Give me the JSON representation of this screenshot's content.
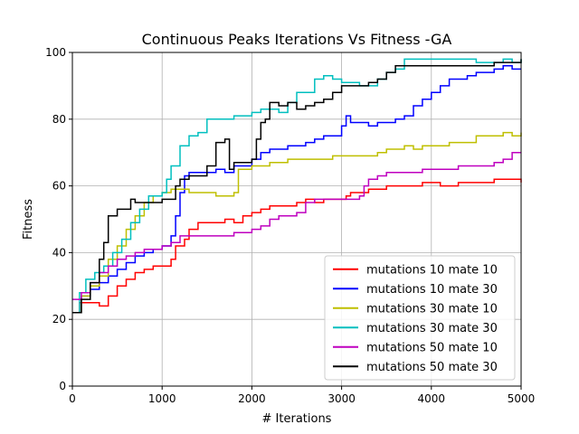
{
  "chart_data": {
    "type": "line",
    "title": "Continuous Peaks Iterations Vs Fitness -GA",
    "xlabel": "# Iterations",
    "ylabel": "Fitness",
    "xlim": [
      0,
      5000
    ],
    "ylim": [
      0,
      100
    ],
    "xticks": [
      0,
      1000,
      2000,
      3000,
      4000,
      5000
    ],
    "yticks": [
      0,
      20,
      40,
      60,
      80,
      100
    ],
    "grid": true,
    "legend_position": "bottom-right",
    "step": true,
    "series": [
      {
        "name": "mutations 10 mate 10",
        "color": "#ff0000",
        "points": [
          [
            0,
            22
          ],
          [
            80,
            25
          ],
          [
            200,
            25
          ],
          [
            300,
            24
          ],
          [
            400,
            27
          ],
          [
            500,
            30
          ],
          [
            600,
            32
          ],
          [
            700,
            34
          ],
          [
            800,
            35
          ],
          [
            900,
            36
          ],
          [
            1000,
            36
          ],
          [
            1100,
            38
          ],
          [
            1150,
            42
          ],
          [
            1250,
            44
          ],
          [
            1300,
            47
          ],
          [
            1400,
            49
          ],
          [
            1500,
            49
          ],
          [
            1600,
            49
          ],
          [
            1700,
            50
          ],
          [
            1800,
            49
          ],
          [
            1900,
            51
          ],
          [
            2000,
            52
          ],
          [
            2100,
            53
          ],
          [
            2200,
            54
          ],
          [
            2300,
            54
          ],
          [
            2400,
            54
          ],
          [
            2500,
            55
          ],
          [
            2600,
            56
          ],
          [
            2700,
            55
          ],
          [
            2800,
            56
          ],
          [
            2900,
            56
          ],
          [
            3000,
            56
          ],
          [
            3050,
            57
          ],
          [
            3100,
            58
          ],
          [
            3200,
            58
          ],
          [
            3300,
            59
          ],
          [
            3400,
            59
          ],
          [
            3500,
            60
          ],
          [
            3600,
            60
          ],
          [
            3700,
            60
          ],
          [
            3800,
            60
          ],
          [
            3900,
            61
          ],
          [
            4000,
            61
          ],
          [
            4100,
            60
          ],
          [
            4200,
            60
          ],
          [
            4300,
            61
          ],
          [
            4400,
            61
          ],
          [
            4500,
            61
          ],
          [
            4600,
            61
          ],
          [
            4700,
            62
          ],
          [
            4800,
            62
          ],
          [
            4900,
            62
          ],
          [
            5000,
            61
          ]
        ]
      },
      {
        "name": "mutations 10 mate 30",
        "color": "#0000ff",
        "points": [
          [
            0,
            22
          ],
          [
            100,
            27
          ],
          [
            200,
            29
          ],
          [
            300,
            31
          ],
          [
            400,
            33
          ],
          [
            500,
            35
          ],
          [
            600,
            37
          ],
          [
            700,
            39
          ],
          [
            800,
            40
          ],
          [
            900,
            41
          ],
          [
            1000,
            42
          ],
          [
            1100,
            45
          ],
          [
            1150,
            51
          ],
          [
            1200,
            58
          ],
          [
            1250,
            63
          ],
          [
            1300,
            64
          ],
          [
            1400,
            64
          ],
          [
            1500,
            64
          ],
          [
            1600,
            65
          ],
          [
            1700,
            64
          ],
          [
            1800,
            66
          ],
          [
            1900,
            66
          ],
          [
            2000,
            68
          ],
          [
            2100,
            70
          ],
          [
            2200,
            71
          ],
          [
            2300,
            71
          ],
          [
            2400,
            72
          ],
          [
            2500,
            72
          ],
          [
            2600,
            73
          ],
          [
            2700,
            74
          ],
          [
            2800,
            75
          ],
          [
            2900,
            75
          ],
          [
            3000,
            78
          ],
          [
            3050,
            81
          ],
          [
            3100,
            79
          ],
          [
            3200,
            79
          ],
          [
            3300,
            78
          ],
          [
            3400,
            79
          ],
          [
            3500,
            79
          ],
          [
            3600,
            80
          ],
          [
            3700,
            81
          ],
          [
            3800,
            84
          ],
          [
            3900,
            86
          ],
          [
            4000,
            88
          ],
          [
            4100,
            90
          ],
          [
            4200,
            92
          ],
          [
            4300,
            92
          ],
          [
            4400,
            93
          ],
          [
            4500,
            94
          ],
          [
            4600,
            94
          ],
          [
            4700,
            95
          ],
          [
            4800,
            96
          ],
          [
            4900,
            95
          ],
          [
            5000,
            95
          ]
        ]
      },
      {
        "name": "mutations 30 mate 10",
        "color": "#bfbf00",
        "points": [
          [
            0,
            22
          ],
          [
            100,
            27
          ],
          [
            200,
            30
          ],
          [
            300,
            33
          ],
          [
            400,
            38
          ],
          [
            500,
            42
          ],
          [
            600,
            47
          ],
          [
            700,
            51
          ],
          [
            800,
            55
          ],
          [
            900,
            57
          ],
          [
            1000,
            58
          ],
          [
            1100,
            59
          ],
          [
            1200,
            59
          ],
          [
            1300,
            58
          ],
          [
            1400,
            58
          ],
          [
            1500,
            58
          ],
          [
            1600,
            57
          ],
          [
            1700,
            57
          ],
          [
            1800,
            58
          ],
          [
            1850,
            65
          ],
          [
            1900,
            65
          ],
          [
            2000,
            66
          ],
          [
            2100,
            66
          ],
          [
            2200,
            67
          ],
          [
            2300,
            67
          ],
          [
            2400,
            68
          ],
          [
            2500,
            68
          ],
          [
            2600,
            68
          ],
          [
            2700,
            68
          ],
          [
            2800,
            68
          ],
          [
            2900,
            69
          ],
          [
            3000,
            69
          ],
          [
            3100,
            69
          ],
          [
            3200,
            69
          ],
          [
            3300,
            69
          ],
          [
            3400,
            70
          ],
          [
            3500,
            71
          ],
          [
            3600,
            71
          ],
          [
            3700,
            72
          ],
          [
            3800,
            71
          ],
          [
            3900,
            72
          ],
          [
            4000,
            72
          ],
          [
            4100,
            72
          ],
          [
            4200,
            73
          ],
          [
            4300,
            73
          ],
          [
            4400,
            73
          ],
          [
            4500,
            75
          ],
          [
            4600,
            75
          ],
          [
            4700,
            75
          ],
          [
            4800,
            76
          ],
          [
            4900,
            75
          ],
          [
            5000,
            76
          ]
        ]
      },
      {
        "name": "mutations 30 mate 30",
        "color": "#00bfbf",
        "points": [
          [
            0,
            22
          ],
          [
            80,
            28
          ],
          [
            150,
            32
          ],
          [
            250,
            34
          ],
          [
            350,
            36
          ],
          [
            450,
            40
          ],
          [
            550,
            44
          ],
          [
            650,
            49
          ],
          [
            750,
            53
          ],
          [
            850,
            57
          ],
          [
            950,
            57
          ],
          [
            1000,
            58
          ],
          [
            1050,
            62
          ],
          [
            1100,
            66
          ],
          [
            1200,
            72
          ],
          [
            1300,
            75
          ],
          [
            1400,
            76
          ],
          [
            1500,
            80
          ],
          [
            1600,
            80
          ],
          [
            1700,
            80
          ],
          [
            1800,
            81
          ],
          [
            1900,
            81
          ],
          [
            2000,
            82
          ],
          [
            2100,
            83
          ],
          [
            2200,
            83
          ],
          [
            2300,
            82
          ],
          [
            2400,
            85
          ],
          [
            2500,
            88
          ],
          [
            2600,
            88
          ],
          [
            2700,
            92
          ],
          [
            2800,
            93
          ],
          [
            2900,
            92
          ],
          [
            3000,
            91
          ],
          [
            3100,
            91
          ],
          [
            3200,
            90
          ],
          [
            3300,
            90
          ],
          [
            3400,
            92
          ],
          [
            3500,
            94
          ],
          [
            3600,
            95
          ],
          [
            3700,
            98
          ],
          [
            3800,
            98
          ],
          [
            3900,
            98
          ],
          [
            4000,
            98
          ],
          [
            4100,
            98
          ],
          [
            4200,
            98
          ],
          [
            4300,
            98
          ],
          [
            4400,
            98
          ],
          [
            4500,
            97
          ],
          [
            4600,
            97
          ],
          [
            4700,
            97
          ],
          [
            4800,
            98
          ],
          [
            4900,
            97
          ],
          [
            5000,
            98
          ]
        ]
      },
      {
        "name": "mutations 50 mate 10",
        "color": "#bf00bf",
        "points": [
          [
            0,
            26
          ],
          [
            100,
            28
          ],
          [
            200,
            31
          ],
          [
            300,
            34
          ],
          [
            400,
            36
          ],
          [
            500,
            38
          ],
          [
            600,
            39
          ],
          [
            700,
            40
          ],
          [
            800,
            41
          ],
          [
            900,
            41
          ],
          [
            1000,
            42
          ],
          [
            1100,
            43
          ],
          [
            1200,
            45
          ],
          [
            1300,
            45
          ],
          [
            1400,
            45
          ],
          [
            1500,
            45
          ],
          [
            1600,
            45
          ],
          [
            1700,
            45
          ],
          [
            1800,
            46
          ],
          [
            1900,
            46
          ],
          [
            2000,
            47
          ],
          [
            2100,
            48
          ],
          [
            2200,
            50
          ],
          [
            2300,
            51
          ],
          [
            2400,
            51
          ],
          [
            2500,
            52
          ],
          [
            2600,
            55
          ],
          [
            2700,
            56
          ],
          [
            2800,
            56
          ],
          [
            2900,
            56
          ],
          [
            3000,
            56
          ],
          [
            3100,
            56
          ],
          [
            3200,
            57
          ],
          [
            3250,
            60
          ],
          [
            3300,
            62
          ],
          [
            3400,
            63
          ],
          [
            3500,
            64
          ],
          [
            3600,
            64
          ],
          [
            3700,
            64
          ],
          [
            3800,
            64
          ],
          [
            3900,
            65
          ],
          [
            4000,
            65
          ],
          [
            4100,
            65
          ],
          [
            4200,
            65
          ],
          [
            4300,
            66
          ],
          [
            4400,
            66
          ],
          [
            4500,
            66
          ],
          [
            4600,
            66
          ],
          [
            4700,
            67
          ],
          [
            4800,
            68
          ],
          [
            4900,
            70
          ],
          [
            5000,
            70
          ]
        ]
      },
      {
        "name": "mutations 50 mate 30",
        "color": "#000000",
        "points": [
          [
            0,
            22
          ],
          [
            100,
            26
          ],
          [
            200,
            31
          ],
          [
            300,
            38
          ],
          [
            350,
            43
          ],
          [
            400,
            51
          ],
          [
            500,
            53
          ],
          [
            600,
            53
          ],
          [
            650,
            56
          ],
          [
            700,
            55
          ],
          [
            800,
            55
          ],
          [
            900,
            55
          ],
          [
            1000,
            56
          ],
          [
            1100,
            56
          ],
          [
            1150,
            60
          ],
          [
            1200,
            62
          ],
          [
            1300,
            63
          ],
          [
            1400,
            63
          ],
          [
            1500,
            66
          ],
          [
            1600,
            73
          ],
          [
            1700,
            74
          ],
          [
            1750,
            65
          ],
          [
            1800,
            67
          ],
          [
            1900,
            67
          ],
          [
            2000,
            68
          ],
          [
            2050,
            74
          ],
          [
            2100,
            79
          ],
          [
            2150,
            80
          ],
          [
            2200,
            85
          ],
          [
            2300,
            84
          ],
          [
            2400,
            85
          ],
          [
            2500,
            83
          ],
          [
            2600,
            84
          ],
          [
            2700,
            85
          ],
          [
            2800,
            86
          ],
          [
            2900,
            88
          ],
          [
            3000,
            90
          ],
          [
            3100,
            90
          ],
          [
            3200,
            90
          ],
          [
            3300,
            91
          ],
          [
            3400,
            92
          ],
          [
            3500,
            94
          ],
          [
            3600,
            96
          ],
          [
            3700,
            96
          ],
          [
            3800,
            96
          ],
          [
            3900,
            96
          ],
          [
            4000,
            96
          ],
          [
            4100,
            96
          ],
          [
            4200,
            96
          ],
          [
            4300,
            96
          ],
          [
            4400,
            96
          ],
          [
            4500,
            96
          ],
          [
            4600,
            96
          ],
          [
            4700,
            97
          ],
          [
            4800,
            97
          ],
          [
            4900,
            97
          ],
          [
            5000,
            98
          ]
        ]
      }
    ]
  }
}
